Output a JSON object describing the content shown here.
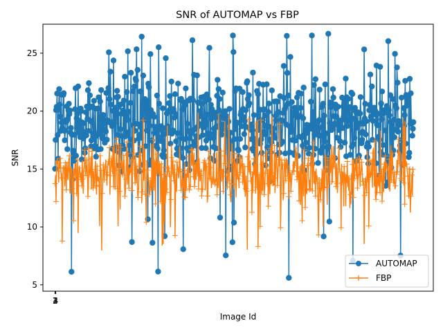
{
  "chart_data": {
    "type": "line",
    "title": "SNR of AUTOMAP vs FBP",
    "xlabel": "Image Id",
    "ylabel": "SNR",
    "xlim": [
      -60,
      1900
    ],
    "ylim": [
      4.45,
      27.5
    ],
    "x_tick_values": [
      1,
      2,
      3,
      4
    ],
    "x_tick_labels": [
      "1",
      "2",
      "3",
      "4"
    ],
    "y_tick_values": [
      5,
      10,
      15,
      20,
      25
    ],
    "y_tick_labels": [
      "5",
      "10",
      "15",
      "20",
      "25"
    ],
    "legend": {
      "position": "lower right",
      "entries": [
        "AUTOMAP",
        "FBP"
      ]
    },
    "grid": false,
    "series": [
      {
        "name": "AUTOMAP",
        "color": "#1f77b4",
        "marker": "circle",
        "approximate_profile": {
          "x_range": [
            1,
            1800
          ],
          "mean": 19,
          "min": 5.6,
          "max": 26.7,
          "typical_range": [
            8,
            25
          ]
        }
      },
      {
        "name": "FBP",
        "color": "#ff7f0e",
        "marker": "plus",
        "approximate_profile": {
          "x_range": [
            1,
            1800
          ],
          "mean": 14.5,
          "min": 7.9,
          "max": 19.9,
          "typical_range": [
            10,
            18
          ]
        }
      }
    ]
  }
}
